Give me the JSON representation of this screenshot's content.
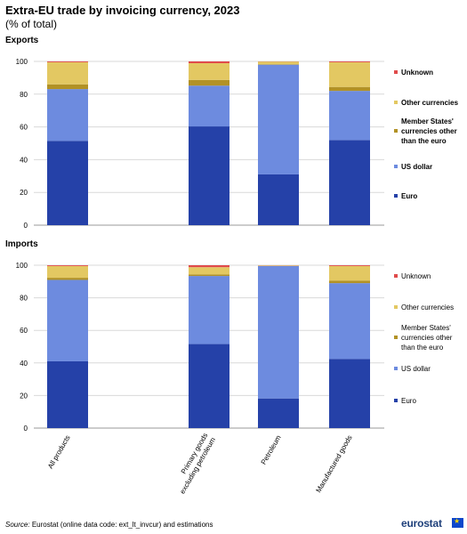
{
  "title": "Extra-EU trade by invoicing currency, 2023",
  "subtitle": "(% of total)",
  "source_label": "Source:",
  "source_text": "Eurostat (online data code: ext_lt_invcur) and estimations",
  "logo_text": "eurostat",
  "colors": {
    "Euro": "#2541a8",
    "US dollar": "#6d8bdf",
    "Member States' currencies other than the euro": "#b29226",
    "Other currencies": "#e3c862",
    "Unknown": "#e04b4b"
  },
  "chart_data": [
    {
      "type": "bar",
      "stacked": true,
      "panel_title": "Exports",
      "categories": [
        "All products",
        "",
        "Primary goods excluding petroleum",
        "Petroleum",
        "Manufactured goods"
      ],
      "ylim": [
        0,
        100
      ],
      "yticks": [
        0,
        20,
        40,
        60,
        80,
        100
      ],
      "grid": true,
      "legend_position": "right",
      "legend_bold": true,
      "series": [
        {
          "name": "Euro",
          "values": [
            51.5,
            null,
            60.3,
            31.0,
            52.0
          ]
        },
        {
          "name": "US dollar",
          "values": [
            31.6,
            null,
            24.9,
            67.0,
            30.0
          ]
        },
        {
          "name": "Member States' currencies other than the euro",
          "values": [
            2.9,
            null,
            3.5,
            0.3,
            2.4
          ]
        },
        {
          "name": "Other currencies",
          "values": [
            13.5,
            null,
            10.2,
            1.6,
            15.1
          ]
        },
        {
          "name": "Unknown",
          "values": [
            0.5,
            null,
            1.1,
            0.1,
            0.5
          ]
        }
      ]
    },
    {
      "type": "bar",
      "stacked": true,
      "panel_title": "Imports",
      "categories": [
        "All products",
        "",
        "Primary goods excluding petroleum",
        "Petroleum",
        "Manufactured goods"
      ],
      "ylim": [
        0,
        100
      ],
      "yticks": [
        0,
        20,
        40,
        60,
        80,
        100
      ],
      "grid": true,
      "legend_position": "right",
      "legend_bold": false,
      "series": [
        {
          "name": "Euro",
          "values": [
            41.0,
            null,
            51.6,
            18.2,
            42.5
          ]
        },
        {
          "name": "US dollar",
          "values": [
            50.0,
            null,
            41.8,
            81.3,
            46.5
          ]
        },
        {
          "name": "Member States' currencies other than the euro",
          "values": [
            1.3,
            null,
            1.0,
            0.1,
            1.6
          ]
        },
        {
          "name": "Other currencies",
          "values": [
            7.2,
            null,
            4.4,
            0.3,
            8.9
          ]
        },
        {
          "name": "Unknown",
          "values": [
            0.5,
            null,
            1.2,
            0.1,
            0.5
          ]
        }
      ]
    }
  ]
}
